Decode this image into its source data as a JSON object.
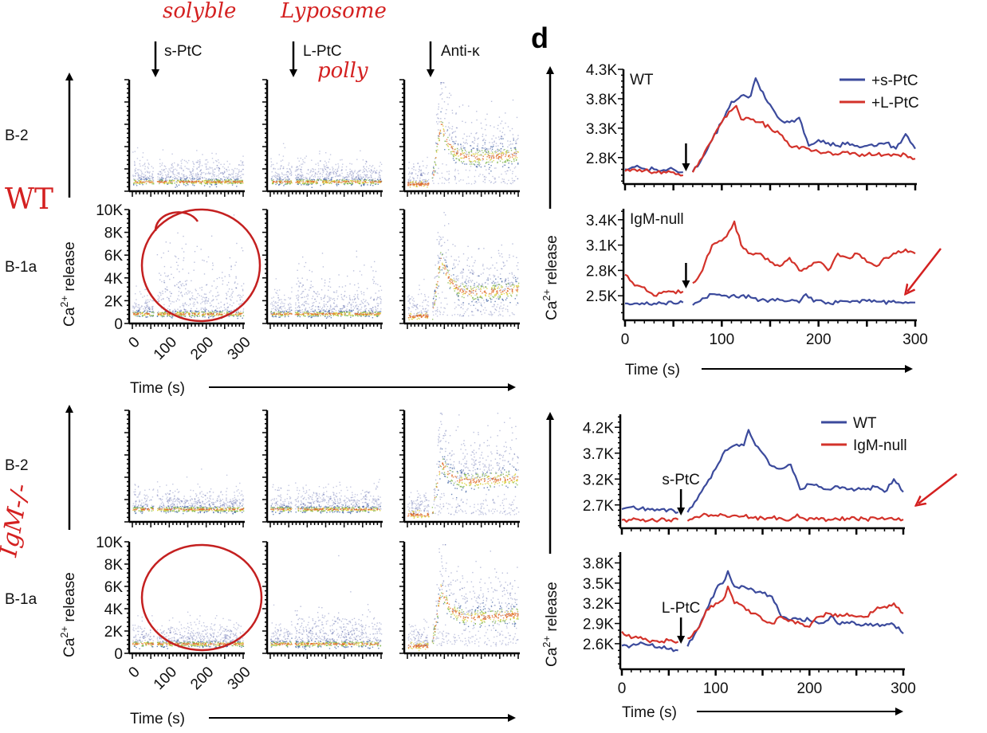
{
  "figure_label": "d",
  "left": {
    "stimuli": [
      "s-PtC",
      "L-PtC",
      "Anti-κ"
    ],
    "groups": [
      {
        "rows": [
          "B-2",
          "B-1a"
        ]
      },
      {
        "rows": [
          "B-2",
          "B-1a"
        ]
      }
    ],
    "y_ticks": [
      "0",
      "2K",
      "4K",
      "6K",
      "8K",
      "10K"
    ],
    "x_ticks": [
      "0",
      "100",
      "200",
      "300"
    ],
    "ylabel": {
      "base": "Ca",
      "sup": "2+",
      "rest": " release"
    },
    "xlabel": "Time (s)"
  },
  "right": {
    "ylabel": {
      "base": "Ca",
      "sup": "2+",
      "rest": " release"
    },
    "xlabel": "Time (s)"
  },
  "annotations": {
    "handwritten": {
      "soluble": "solyble",
      "liposome": "Lyposome",
      "polly": "polly",
      "wt": "WT",
      "igm": "IgM-/-"
    },
    "color": "#d42020"
  },
  "colors": {
    "blue": "#3b4a9c",
    "red": "#d3322a"
  },
  "chart_data": [
    {
      "type": "density-scatter",
      "panels": "WT: B-2 and B-1a × s-PtC, L-PtC, Anti-κ; IgM-/-: B-2 and B-1a × s-PtC, L-PtC, Anti-κ",
      "xlim": [
        0,
        300
      ],
      "ylim": [
        0,
        10000
      ],
      "xlabel": "Time (s)",
      "ylabel": "Ca2+ release"
    },
    {
      "type": "line",
      "panel_label": "WT",
      "xlim": [
        0,
        300
      ],
      "ylim": [
        2350,
        4300
      ],
      "yticks": [
        "2.8K",
        "3.3K",
        "3.8K",
        "4.3K"
      ],
      "ytick_values": [
        2800,
        3300,
        3800,
        4300
      ],
      "xticks": [],
      "stimulus_time": 63,
      "legend": "top-right",
      "series": [
        {
          "name": "+s-PtC",
          "color": "#3b4a9c",
          "x": [
            0,
            10,
            20,
            30,
            40,
            50,
            60,
            null,
            70,
            80,
            90,
            100,
            110,
            120,
            130,
            135,
            140,
            150,
            160,
            170,
            180,
            190,
            200,
            210,
            220,
            230,
            240,
            250,
            260,
            270,
            280,
            290,
            300
          ],
          "y": [
            2600,
            2640,
            2610,
            2600,
            2590,
            2600,
            2550,
            null,
            2560,
            2800,
            3100,
            3400,
            3750,
            3850,
            3850,
            4150,
            3950,
            3700,
            3450,
            3400,
            3480,
            3000,
            3100,
            3050,
            3000,
            3060,
            3000,
            3000,
            3000,
            3050,
            2950,
            3200,
            2950
          ]
        },
        {
          "name": "+L-PtC",
          "color": "#d3322a",
          "x": [
            0,
            10,
            20,
            30,
            40,
            50,
            60,
            null,
            70,
            80,
            90,
            100,
            110,
            115,
            120,
            130,
            140,
            150,
            160,
            170,
            180,
            190,
            200,
            210,
            220,
            230,
            240,
            250,
            260,
            270,
            280,
            290,
            300
          ],
          "y": [
            2570,
            2600,
            2580,
            2550,
            2560,
            2550,
            2500,
            null,
            2550,
            2800,
            3100,
            3400,
            3600,
            3680,
            3450,
            3450,
            3400,
            3300,
            3200,
            3000,
            2950,
            2950,
            2900,
            2900,
            2850,
            2900,
            2850,
            2850,
            2850,
            2850,
            2850,
            2850,
            2780
          ]
        }
      ]
    },
    {
      "type": "line",
      "panel_label": "IgM-null",
      "xlim": [
        0,
        300
      ],
      "ylim": [
        2210,
        3530
      ],
      "yticks": [
        "2.5K",
        "2.8K",
        "3.1K",
        "3.4K"
      ],
      "ytick_values": [
        2500,
        2800,
        3100,
        3400
      ],
      "xticks": [
        "0",
        "100",
        "200",
        "300"
      ],
      "stimulus_time": 63,
      "series": [
        {
          "name": "+s-PtC",
          "color": "#3b4a9c",
          "x": [
            0,
            10,
            20,
            30,
            40,
            50,
            60,
            null,
            70,
            80,
            90,
            100,
            110,
            120,
            130,
            140,
            150,
            160,
            170,
            180,
            187,
            195,
            210,
            220,
            240,
            260,
            280,
            300
          ],
          "y": [
            2410,
            2410,
            2400,
            2410,
            2410,
            2410,
            2420,
            null,
            2390,
            2470,
            2520,
            2500,
            2500,
            2500,
            2480,
            2450,
            2450,
            2450,
            2440,
            2420,
            2520,
            2430,
            2420,
            2420,
            2440,
            2430,
            2420,
            2420
          ]
        },
        {
          "name": "+L-PtC",
          "color": "#d3322a",
          "x": [
            0,
            10,
            20,
            30,
            40,
            50,
            60,
            null,
            70,
            80,
            90,
            100,
            110,
            113,
            120,
            130,
            140,
            150,
            160,
            170,
            180,
            190,
            200,
            210,
            220,
            230,
            240,
            250,
            260,
            270,
            280,
            290,
            300
          ],
          "y": [
            2750,
            2620,
            2600,
            2500,
            2550,
            2550,
            2550,
            null,
            2650,
            2800,
            3100,
            3150,
            3300,
            3380,
            3100,
            3000,
            3000,
            2900,
            2850,
            2950,
            2800,
            2850,
            2900,
            2800,
            3000,
            2950,
            3000,
            2900,
            2850,
            2950,
            3000,
            3050,
            3000
          ]
        }
      ]
    },
    {
      "type": "line",
      "panel_label": "",
      "annotation": "s-PtC",
      "xlim": [
        0,
        300
      ],
      "ylim": [
        2250,
        4450
      ],
      "yticks": [
        "2.7K",
        "3.2K",
        "3.7K",
        "4.2K"
      ],
      "ytick_values": [
        2700,
        3200,
        3700,
        4200
      ],
      "xticks": [],
      "stimulus_time": 63,
      "legend": "top-right",
      "series": [
        {
          "name": "WT",
          "color": "#3b4a9c",
          "x": [
            0,
            10,
            20,
            30,
            40,
            50,
            60,
            null,
            70,
            80,
            90,
            100,
            110,
            120,
            130,
            135,
            140,
            150,
            160,
            170,
            180,
            190,
            200,
            210,
            220,
            230,
            240,
            250,
            260,
            270,
            280,
            290,
            300
          ],
          "y": [
            2620,
            2660,
            2630,
            2610,
            2600,
            2610,
            2560,
            null,
            2560,
            2800,
            3100,
            3400,
            3750,
            3850,
            3850,
            4150,
            3950,
            3700,
            3450,
            3400,
            3480,
            3000,
            3100,
            3050,
            3000,
            3060,
            3000,
            3000,
            3000,
            3050,
            2950,
            3200,
            2950
          ]
        },
        {
          "name": "IgM-null",
          "color": "#d3322a",
          "x": [
            0,
            10,
            20,
            30,
            40,
            50,
            60,
            null,
            70,
            80,
            90,
            100,
            110,
            120,
            130,
            140,
            150,
            160,
            170,
            180,
            187,
            195,
            210,
            220,
            240,
            260,
            280,
            300
          ],
          "y": [
            2410,
            2410,
            2400,
            2410,
            2410,
            2410,
            2420,
            null,
            2390,
            2470,
            2520,
            2500,
            2500,
            2500,
            2480,
            2450,
            2450,
            2450,
            2440,
            2420,
            2520,
            2430,
            2420,
            2420,
            2440,
            2430,
            2420,
            2420
          ]
        }
      ]
    },
    {
      "type": "line",
      "panel_label": "",
      "annotation": "L-PtC",
      "xlim": [
        0,
        300
      ],
      "ylim": [
        2220,
        3960
      ],
      "yticks": [
        "2.6K",
        "2.9K",
        "3.2K",
        "3.5K",
        "3.8K"
      ],
      "ytick_values": [
        2600,
        2900,
        3200,
        3500,
        3800
      ],
      "xticks": [
        "0",
        "100",
        "200",
        "300"
      ],
      "stimulus_time": 63,
      "series": [
        {
          "name": "WT",
          "color": "#3b4a9c",
          "x": [
            0,
            10,
            20,
            30,
            40,
            50,
            60,
            null,
            70,
            80,
            90,
            100,
            110,
            113,
            120,
            130,
            140,
            150,
            160,
            170,
            180,
            190,
            200,
            210,
            220,
            225,
            230,
            240,
            250,
            260,
            270,
            280,
            290,
            300
          ],
          "y": [
            2570,
            2570,
            2620,
            2580,
            2550,
            2520,
            2500,
            null,
            2560,
            2800,
            3100,
            3400,
            3550,
            3680,
            3450,
            3450,
            3400,
            3350,
            3300,
            3000,
            2950,
            2970,
            2950,
            2900,
            2950,
            3000,
            2900,
            2920,
            2880,
            2900,
            2880,
            2870,
            2880,
            2750
          ]
        },
        {
          "name": "IgM-null",
          "color": "#d3322a",
          "x": [
            0,
            10,
            20,
            30,
            40,
            50,
            60,
            null,
            70,
            80,
            90,
            100,
            110,
            113,
            120,
            130,
            140,
            150,
            160,
            170,
            180,
            190,
            200,
            210,
            220,
            230,
            240,
            250,
            260,
            270,
            280,
            290,
            300
          ],
          "y": [
            2780,
            2680,
            2700,
            2620,
            2620,
            2650,
            2630,
            null,
            2680,
            2800,
            3100,
            3200,
            3300,
            3450,
            3200,
            3150,
            3050,
            2950,
            2900,
            3000,
            2950,
            2900,
            2850,
            3000,
            3050,
            3000,
            3050,
            3000,
            3000,
            3100,
            3150,
            3200,
            3050
          ]
        }
      ]
    }
  ]
}
